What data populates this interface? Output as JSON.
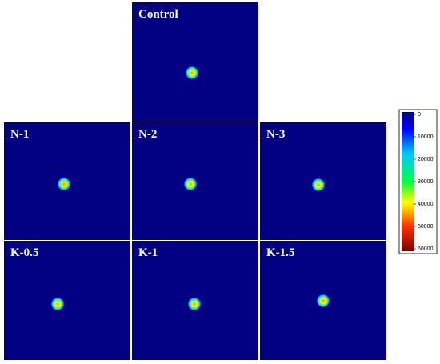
{
  "panels": [
    {
      "label": "Control"
    },
    {
      "label": "N-1"
    },
    {
      "label": "N-2"
    },
    {
      "label": "N-3"
    },
    {
      "label": "K-0.5"
    },
    {
      "label": "K-1"
    },
    {
      "label": "K-1.5"
    }
  ],
  "colorbar": {
    "lim": [
      0,
      60000
    ],
    "ticks": [
      0,
      10000,
      20000,
      30000,
      40000,
      50000,
      60000
    ]
  }
}
